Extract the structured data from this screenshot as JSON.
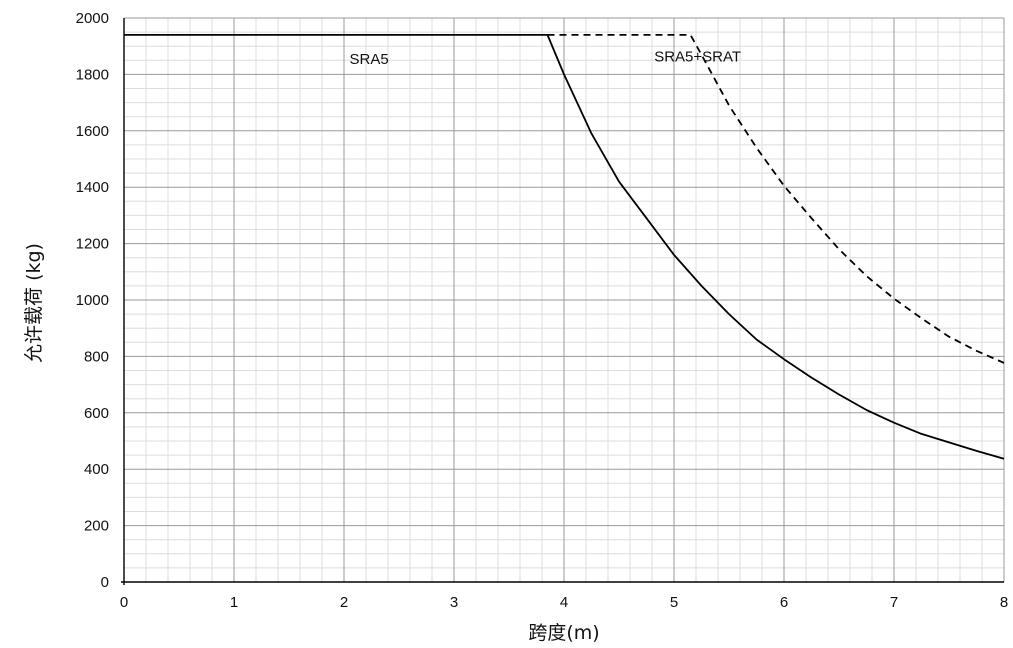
{
  "chart_data": {
    "type": "line",
    "title": "",
    "xlabel": "跨度(m)",
    "ylabel": "允许载荷 (kg)",
    "xlim": [
      0,
      8
    ],
    "ylim": [
      0,
      2000
    ],
    "x_ticks": [
      "0",
      "1",
      "2",
      "3",
      "4",
      "5",
      "6",
      "7",
      "8"
    ],
    "y_ticks": [
      "0",
      "200",
      "400",
      "600",
      "800",
      "1000",
      "1200",
      "1400",
      "1600",
      "1800",
      "2000"
    ],
    "grid": true,
    "minor_grid": true,
    "series": [
      {
        "name": "SRA5",
        "style": "solid",
        "color": "#000000",
        "points": [
          [
            0,
            1940
          ],
          [
            3.85,
            1940
          ],
          [
            4.0,
            1800
          ],
          [
            4.25,
            1590
          ],
          [
            4.5,
            1420
          ],
          [
            4.75,
            1290
          ],
          [
            5.0,
            1160
          ],
          [
            5.25,
            1050
          ],
          [
            5.5,
            950
          ],
          [
            5.75,
            860
          ],
          [
            6.0,
            790
          ],
          [
            6.25,
            725
          ],
          [
            6.5,
            665
          ],
          [
            6.75,
            610
          ],
          [
            7.0,
            565
          ],
          [
            7.25,
            525
          ],
          [
            7.5,
            495
          ],
          [
            7.75,
            465
          ],
          [
            8.0,
            437
          ]
        ]
      },
      {
        "name": "SRA5+SRAT",
        "style": "dashed",
        "color": "#000000",
        "points": [
          [
            3.85,
            1940
          ],
          [
            5.15,
            1940
          ],
          [
            5.25,
            1870
          ],
          [
            5.5,
            1690
          ],
          [
            5.75,
            1540
          ],
          [
            6.0,
            1405
          ],
          [
            6.25,
            1290
          ],
          [
            6.5,
            1180
          ],
          [
            6.75,
            1085
          ],
          [
            7.0,
            1005
          ],
          [
            7.25,
            935
          ],
          [
            7.5,
            870
          ],
          [
            7.75,
            820
          ],
          [
            8.0,
            777
          ]
        ]
      }
    ],
    "annotations": [
      {
        "text": "SRA5",
        "x": 2.05,
        "y": 1855
      },
      {
        "text": "SRA5+SRAT",
        "x": 4.82,
        "y": 1863
      }
    ]
  }
}
